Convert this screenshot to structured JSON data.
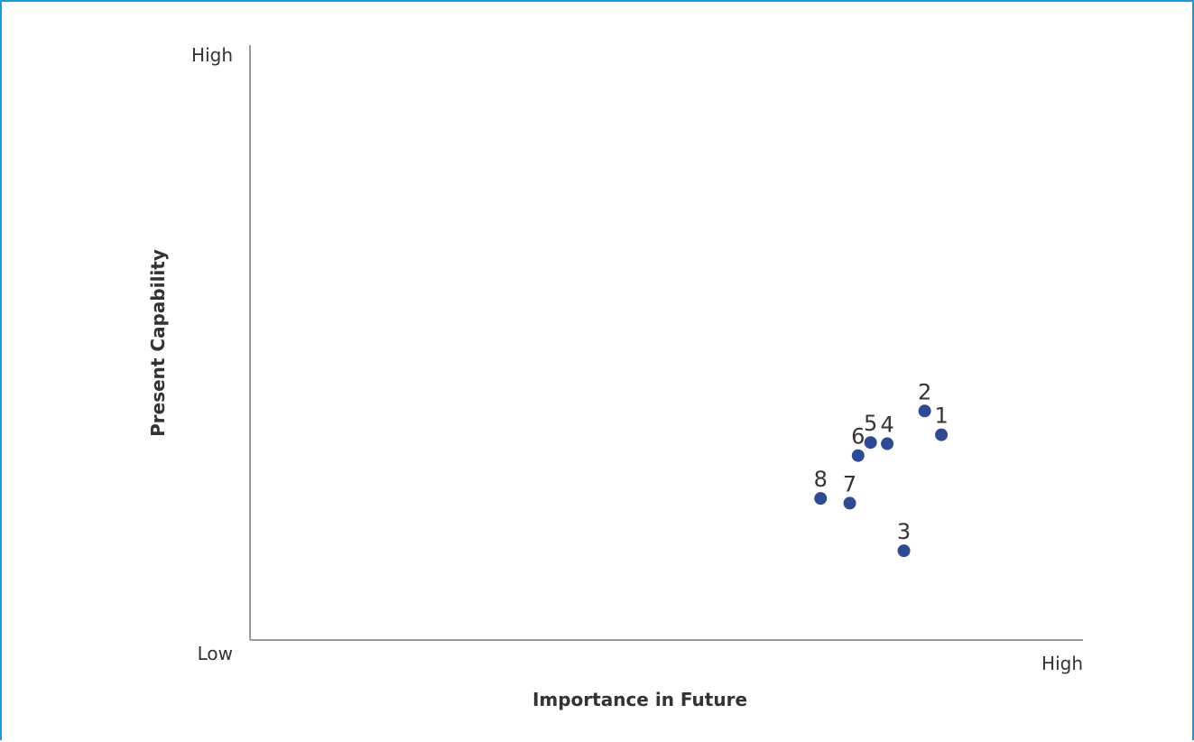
{
  "chart_data": {
    "type": "scatter",
    "title": "",
    "xlabel": "Importance in Future",
    "ylabel": "Present Capability",
    "xlim": [
      0,
      10
    ],
    "ylim": [
      0,
      10
    ],
    "x_tick_labels": {
      "low": "",
      "high": "High"
    },
    "y_tick_labels": {
      "low": "Low",
      "high": "High"
    },
    "grid": false,
    "marker_color": "#2e4a94",
    "points": [
      {
        "label": "1",
        "x": 8.3,
        "y": 3.45
      },
      {
        "label": "2",
        "x": 8.1,
        "y": 3.85
      },
      {
        "label": "3",
        "x": 7.85,
        "y": 1.5
      },
      {
        "label": "4",
        "x": 7.65,
        "y": 3.3
      },
      {
        "label": "5",
        "x": 7.45,
        "y": 3.32
      },
      {
        "label": "6",
        "x": 7.3,
        "y": 3.1
      },
      {
        "label": "7",
        "x": 7.2,
        "y": 2.3
      },
      {
        "label": "8",
        "x": 6.85,
        "y": 2.38
      }
    ]
  }
}
